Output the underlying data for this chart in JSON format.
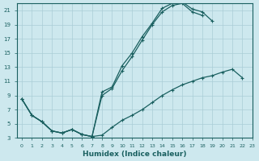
{
  "xlabel": "Humidex (Indice chaleur)",
  "bg_color": "#cde8ee",
  "line_color": "#1a6060",
  "grid_color": "#aacdd6",
  "xlim": [
    -0.5,
    23
  ],
  "ylim": [
    3,
    22
  ],
  "xticks": [
    0,
    1,
    2,
    3,
    4,
    5,
    6,
    7,
    8,
    9,
    10,
    11,
    12,
    13,
    14,
    15,
    16,
    17,
    18,
    19,
    20,
    21,
    22,
    23
  ],
  "yticks": [
    3,
    5,
    7,
    9,
    11,
    13,
    15,
    17,
    19,
    21
  ],
  "curve1_x": [
    0,
    1,
    2,
    3,
    4,
    5,
    6,
    7,
    8,
    9,
    10,
    11,
    12,
    13,
    14,
    15,
    16,
    17,
    18,
    19,
    20,
    21
  ],
  "curve1_y": [
    8.5,
    6.2,
    5.3,
    4.0,
    3.7,
    4.2,
    3.5,
    3.2,
    9.5,
    10.2,
    13.2,
    15.0,
    17.3,
    19.2,
    21.3,
    22.0,
    22.2,
    21.2,
    20.8,
    19.5,
    null,
    null
  ],
  "curve2_x": [
    0,
    1,
    2,
    3,
    4,
    5,
    6,
    7,
    8,
    9,
    10,
    11,
    12,
    13,
    14,
    15,
    16,
    17,
    18,
    19,
    20,
    21
  ],
  "curve2_y": [
    8.5,
    6.2,
    5.3,
    4.0,
    3.7,
    4.2,
    3.5,
    3.2,
    9.0,
    10.0,
    12.5,
    14.5,
    16.8,
    19.0,
    20.8,
    21.7,
    22.0,
    20.8,
    20.3,
    null,
    null,
    null
  ],
  "curve3_x": [
    0,
    1,
    2,
    3,
    4,
    5,
    6,
    7,
    8,
    9,
    10,
    11,
    12,
    13,
    14,
    15,
    16,
    17,
    18,
    19,
    20,
    21,
    22
  ],
  "curve3_y": [
    8.5,
    6.2,
    5.3,
    4.0,
    3.7,
    4.2,
    3.5,
    3.2,
    3.4,
    4.5,
    5.5,
    6.2,
    7.0,
    8.0,
    9.0,
    9.8,
    10.5,
    11.0,
    11.5,
    11.8,
    12.3,
    12.7,
    11.5
  ]
}
